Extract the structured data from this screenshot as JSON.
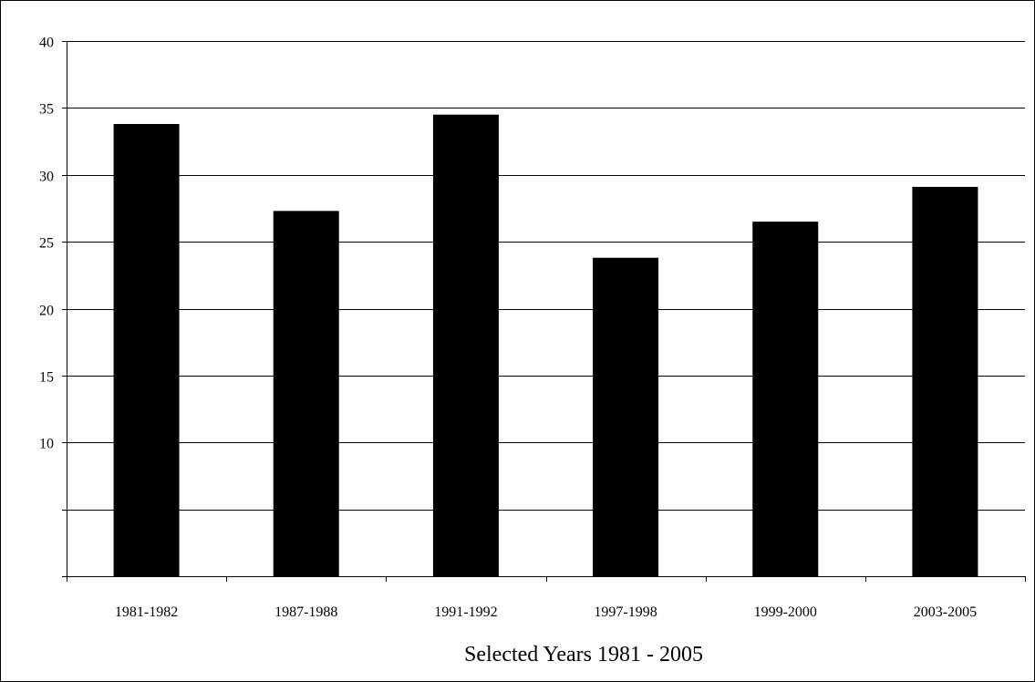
{
  "chart_data": {
    "type": "bar",
    "title": "",
    "xlabel": "Selected Years 1981 - 2005",
    "ylabel": "",
    "categories": [
      "1981-1982",
      "1987-1988",
      "1991-1992",
      "1997-1998",
      "1999-2000",
      "2003-2005"
    ],
    "values": [
      33.8,
      27.3,
      34.5,
      23.8,
      26.5,
      29.1
    ],
    "ylim": [
      0,
      40
    ],
    "yticks": [
      0,
      5,
      10,
      15,
      20,
      25,
      30,
      35,
      40
    ],
    "ytick_labels": [
      "",
      "",
      "10",
      "15",
      "20",
      "25",
      "30",
      "35",
      "40"
    ],
    "grid": "horizontal",
    "legend": "none",
    "colors": {
      "bar": "#000000",
      "grid": "#000000",
      "background": "#ffffff"
    }
  }
}
